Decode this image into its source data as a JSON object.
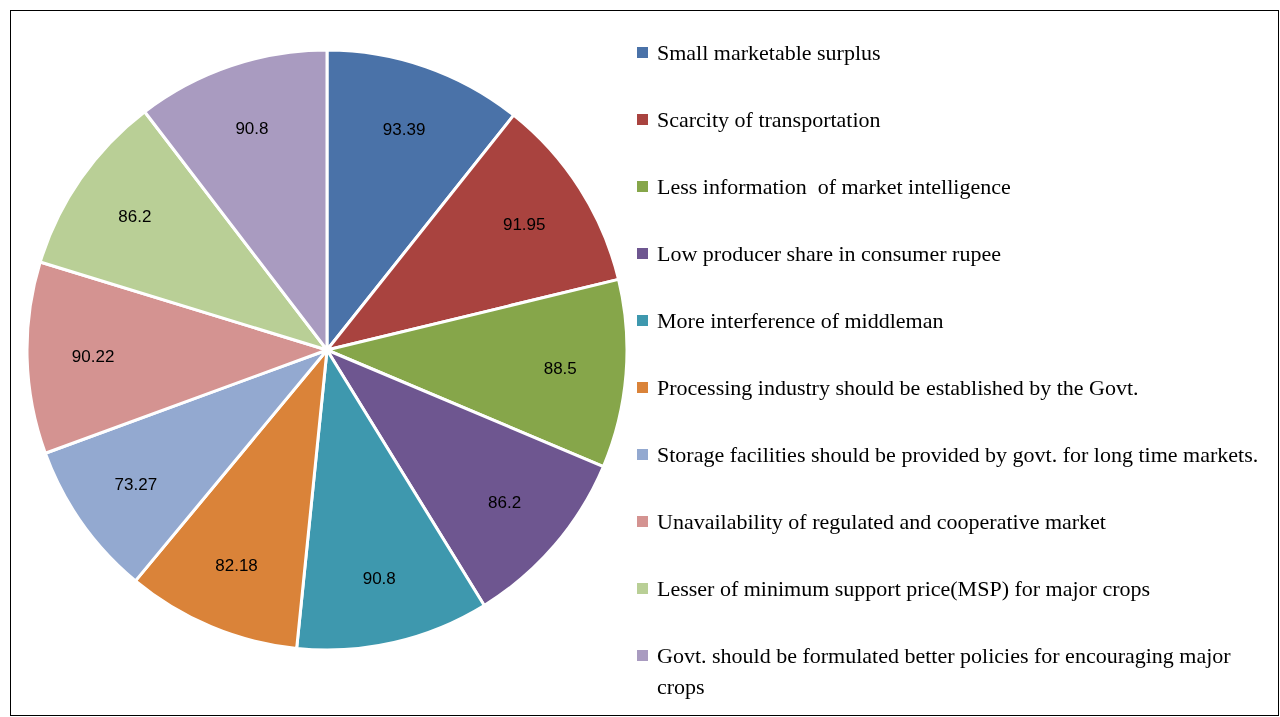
{
  "chart_data": {
    "type": "pie",
    "categories": [
      "Small marketable surplus",
      "Scarcity of transportation",
      "Less information  of market intelligence",
      "Low producer share in consumer rupee",
      "More interference of middleman",
      "Processing industry should be established by the Govt.",
      "Storage facilities should be provided by govt. for long time markets.",
      "Unavailability of regulated and cooperative market",
      "Lesser of minimum support price(MSP) for major crops",
      "Govt. should be formulated better policies for encouraging major crops"
    ],
    "values": [
      93.39,
      91.95,
      88.5,
      86.2,
      90.8,
      82.18,
      73.27,
      90.22,
      86.2,
      90.8
    ],
    "colors": [
      "#4a72a8",
      "#a9433f",
      "#86a64a",
      "#6e5690",
      "#3e98ae",
      "#da8339",
      "#93a9d0",
      "#d49391",
      "#b9cf96",
      "#a99bc0"
    ],
    "data_labels": true,
    "legend": "right"
  }
}
